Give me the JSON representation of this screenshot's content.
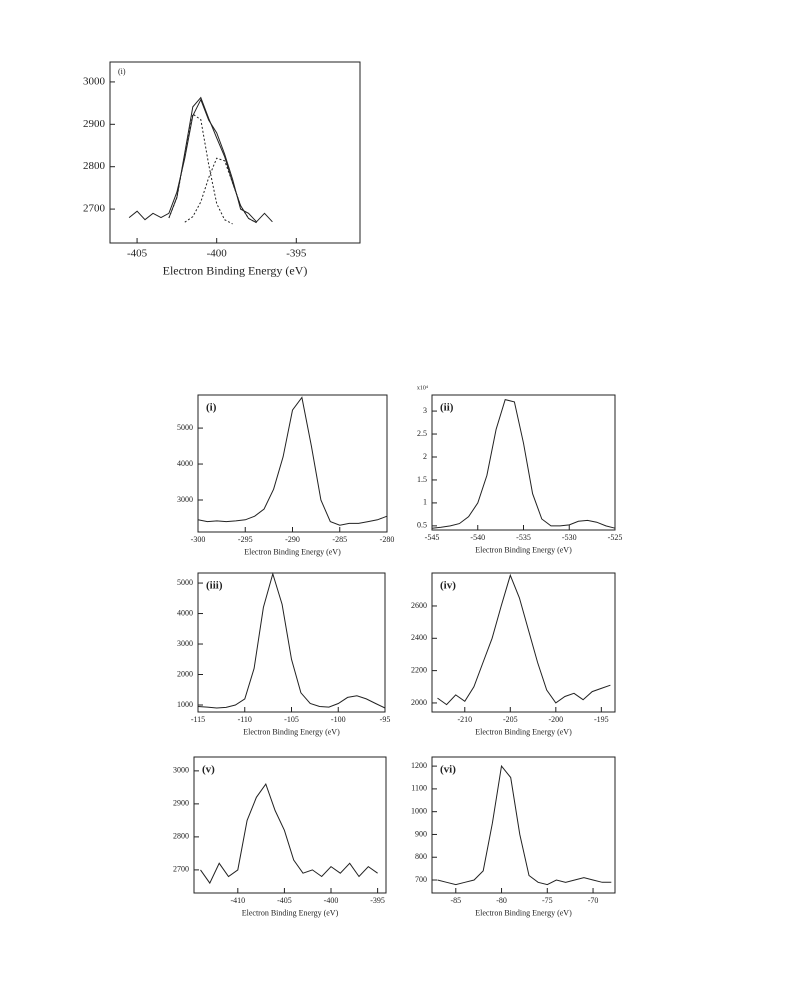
{
  "chart_data": [
    {
      "type": "line",
      "label": "(i)",
      "xlabel": "Electron Binding Energy (eV)",
      "x": [
        -405.5,
        -405,
        -404.5,
        -404,
        -403.5,
        -403,
        -402.5,
        -402,
        -401.5,
        -401,
        -400.5,
        -400,
        -399.5,
        -399,
        -398.5,
        -398,
        -397.5,
        -397,
        -396.5
      ],
      "series": [
        {
          "color": "#222",
          "style": "solid",
          "values": [
            2680,
            2695,
            2675,
            2690,
            2680,
            2690,
            2740,
            2820,
            2920,
            2958,
            2910,
            2880,
            2830,
            2770,
            2700,
            2690,
            2670,
            2690,
            2670
          ]
        },
        {
          "color": "#222",
          "style": "solid",
          "values": [
            null,
            null,
            null,
            null,
            null,
            2679,
            2728,
            2833,
            2941,
            2963,
            2914,
            2868,
            2824,
            2762,
            2708,
            2678,
            2668,
            null,
            null
          ]
        },
        {
          "color": "#222",
          "style": "dashed",
          "values": [
            null,
            null,
            null,
            null,
            null,
            2679,
            2727,
            2829,
            2924,
            2911,
            2805,
            2713,
            2675,
            2665,
            null,
            null,
            null,
            null,
            null
          ]
        },
        {
          "color": "#222",
          "style": "dashed",
          "values": [
            null,
            null,
            null,
            null,
            null,
            null,
            null,
            2669,
            2682,
            2717,
            2774,
            2820,
            2814,
            2762,
            2708,
            2678,
            2668,
            null,
            null
          ]
        }
      ],
      "xlim": [
        -406.7,
        -391
      ],
      "xticks": [
        -405,
        -400,
        -395
      ],
      "ylim": [
        2620,
        3047
      ],
      "yticks": [
        2700,
        2800,
        2900,
        3000
      ]
    },
    {
      "type": "line",
      "label": "(i)",
      "xlabel": "Electron Binding Energy (eV)",
      "x": [
        -300,
        -299,
        -298,
        -297,
        -296,
        -295,
        -294,
        -293,
        -292,
        -291,
        -290,
        -289,
        -288,
        -287,
        -286,
        -285,
        -284,
        -283,
        -282,
        -281,
        -280
      ],
      "series": [
        {
          "color": "#222",
          "style": "solid",
          "values": [
            2450,
            2400,
            2420,
            2400,
            2420,
            2450,
            2550,
            2750,
            3300,
            4200,
            5500,
            5850,
            4500,
            3000,
            2400,
            2300,
            2350,
            2350,
            2400,
            2450,
            2550
          ]
        }
      ],
      "xlim": [
        -300,
        -280
      ],
      "xticks": [
        -300,
        -295,
        -290,
        -285,
        -280
      ],
      "ylim": [
        2110,
        5920
      ],
      "yticks": [
        3000,
        4000,
        5000
      ]
    },
    {
      "type": "line",
      "label": "(ii)",
      "xlabel": "Electron Binding Energy (eV)",
      "annotation": "x10⁴",
      "x": [
        -545,
        -544,
        -543,
        -542,
        -541,
        -540,
        -539,
        -538,
        -537,
        -536,
        -535,
        -534,
        -533,
        -532,
        -531,
        -530,
        -529,
        -528,
        -527,
        -526,
        -525
      ],
      "series": [
        {
          "color": "#222",
          "style": "solid",
          "values": [
            0.45,
            0.47,
            0.5,
            0.55,
            0.7,
            1.0,
            1.6,
            2.6,
            3.25,
            3.2,
            2.3,
            1.2,
            0.65,
            0.5,
            0.5,
            0.52,
            0.6,
            0.62,
            0.58,
            0.5,
            0.45
          ]
        }
      ],
      "xlim": [
        -545,
        -525
      ],
      "xticks": [
        -545,
        -540,
        -535,
        -530,
        -525
      ],
      "ylim": [
        0.41,
        3.35
      ],
      "yticks": [
        0.5,
        1,
        1.5,
        2,
        2.5,
        3
      ]
    },
    {
      "type": "line",
      "label": "(iii)",
      "xlabel": "Electron Binding Energy (eV)",
      "x": [
        -115,
        -114,
        -113,
        -112,
        -111,
        -110,
        -109,
        -108,
        -107,
        -106,
        -105,
        -104,
        -103,
        -102,
        -101,
        -100,
        -99,
        -98,
        -97,
        -96,
        -95
      ],
      "series": [
        {
          "color": "#222",
          "style": "solid",
          "values": [
            950,
            930,
            900,
            920,
            1000,
            1200,
            2200,
            4200,
            5300,
            4300,
            2500,
            1400,
            1050,
            950,
            930,
            1050,
            1250,
            1300,
            1200,
            1050,
            900
          ]
        }
      ],
      "xlim": [
        -115,
        -95
      ],
      "xticks": [
        -115,
        -110,
        -105,
        -100,
        -95
      ],
      "ylim": [
        770,
        5330
      ],
      "yticks": [
        1000,
        2000,
        3000,
        4000,
        5000
      ]
    },
    {
      "type": "line",
      "label": "(iv)",
      "xlabel": "Electron Binding Energy (eV)",
      "x": [
        -213,
        -212,
        -211,
        -210,
        -209,
        -208,
        -207,
        -206,
        -205,
        -204,
        -203,
        -202,
        -201,
        -200,
        -199,
        -198,
        -197,
        -196,
        -195,
        -194
      ],
      "series": [
        {
          "color": "#222",
          "style": "solid",
          "values": [
            2030,
            1990,
            2050,
            2010,
            2100,
            2250,
            2400,
            2600,
            2790,
            2650,
            2450,
            2250,
            2080,
            2000,
            2040,
            2060,
            2020,
            2070,
            2090,
            2110
          ]
        }
      ],
      "xlim": [
        -213.6,
        -193.5
      ],
      "xticks": [
        -210,
        -205,
        -200,
        -195
      ],
      "ylim": [
        1944,
        2804
      ],
      "yticks": [
        2000,
        2200,
        2400,
        2600
      ]
    },
    {
      "type": "line",
      "label": "(v)",
      "xlabel": "Electron Binding Energy (eV)",
      "x": [
        -414,
        -413,
        -412,
        -411,
        -410,
        -409,
        -408,
        -407,
        -406,
        -405,
        -404,
        -403,
        -402,
        -401,
        -400,
        -399,
        -398,
        -397,
        -396,
        -395
      ],
      "series": [
        {
          "color": "#222",
          "style": "solid",
          "values": [
            2700,
            2660,
            2720,
            2680,
            2700,
            2850,
            2920,
            2960,
            2880,
            2820,
            2730,
            2690,
            2700,
            2680,
            2710,
            2690,
            2720,
            2680,
            2710,
            2690
          ]
        }
      ],
      "xlim": [
        -414.7,
        -394.1
      ],
      "xticks": [
        -410,
        -405,
        -400,
        -395
      ],
      "ylim": [
        2630,
        3042
      ],
      "yticks": [
        2700,
        2800,
        2900,
        3000
      ]
    },
    {
      "type": "line",
      "label": "(vi)",
      "xlabel": "Electron Binding Energy (eV)",
      "x": [
        -87,
        -86,
        -85,
        -84,
        -83,
        -82,
        -81,
        -80,
        -79,
        -78,
        -77,
        -76,
        -75,
        -74,
        -73,
        -72,
        -71,
        -70,
        -69,
        -68
      ],
      "series": [
        {
          "color": "#222",
          "style": "solid",
          "values": [
            700,
            690,
            680,
            690,
            700,
            740,
            950,
            1200,
            1150,
            900,
            720,
            690,
            680,
            700,
            690,
            700,
            710,
            700,
            690,
            690
          ]
        }
      ],
      "xlim": [
        -87.6,
        -67.6
      ],
      "xticks": [
        -85,
        -80,
        -75,
        -70
      ],
      "ylim": [
        643,
        1240
      ],
      "yticks": [
        700,
        800,
        900,
        1000,
        1100,
        1200
      ]
    }
  ]
}
